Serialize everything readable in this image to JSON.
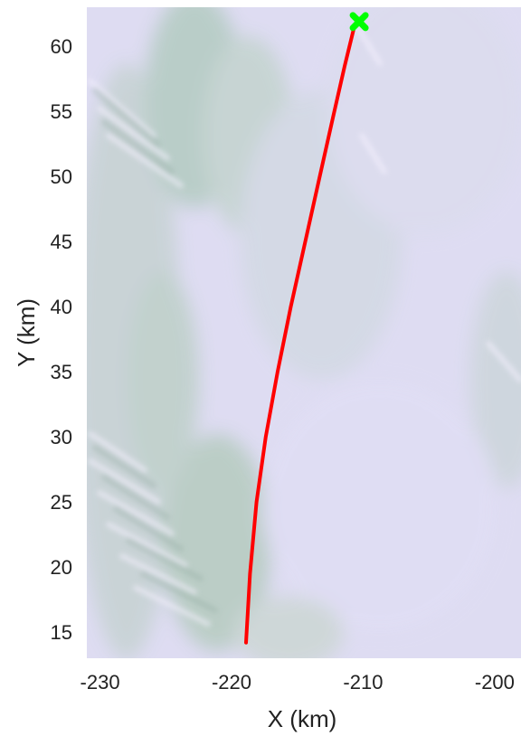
{
  "chart_data": {
    "type": "line",
    "title": "",
    "xlabel": "X (km)",
    "ylabel": "Y (km)",
    "xlim": [
      -231,
      -198
    ],
    "ylim": [
      13,
      63
    ],
    "x_ticks": [
      -230,
      -220,
      -210,
      -200
    ],
    "y_ticks": [
      15,
      20,
      25,
      30,
      35,
      40,
      45,
      50,
      55,
      60
    ],
    "x_tick_labels": [
      "-230",
      "-220",
      "-210",
      "-200"
    ],
    "y_tick_labels": [
      "15",
      "20",
      "25",
      "30",
      "35",
      "40",
      "45",
      "50",
      "55",
      "60"
    ],
    "grid": false,
    "background": "satellite-style terrain image (pale lavender with green-gray ridges)",
    "series": [
      {
        "color": "#ff0000",
        "x": [
          -218.9,
          -218.6,
          -218.1,
          -217.4,
          -216.5,
          -215.5,
          -214.4,
          -213.3,
          -212.3,
          -211.4,
          -210.7
        ],
        "y": [
          14.2,
          19.5,
          25.0,
          30.0,
          35.0,
          40.0,
          45.0,
          50.0,
          54.5,
          58.5,
          61.4
        ]
      }
    ],
    "markers": [
      {
        "shape": "x",
        "color": "#00ff00",
        "x": -210.3,
        "y": 61.9
      }
    ]
  }
}
